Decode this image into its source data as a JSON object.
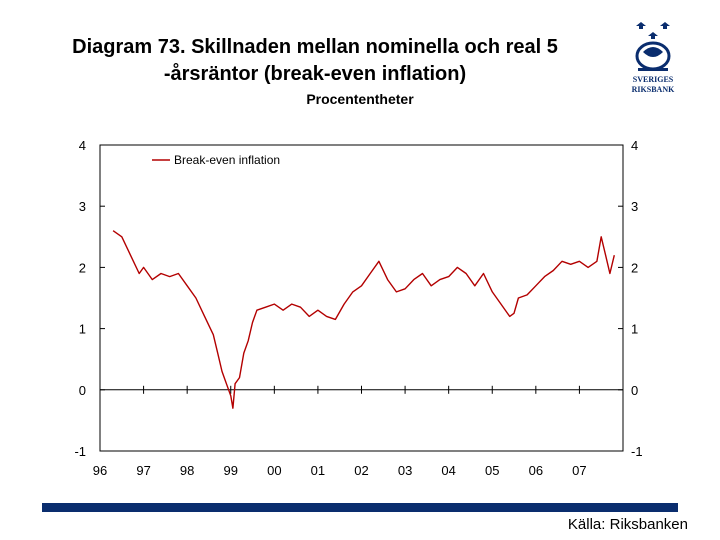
{
  "title_line1": "Diagram 73. Skillnaden mellan nominella och real 5",
  "title_line2": "-årsräntor (break-even inflation)",
  "subtitle": "Procententheter",
  "source": "Källa: Riksbanken",
  "logo": {
    "icon": "sveriges-riksbank-logo",
    "line1": "SVERIGES",
    "line2": "RIKSBANK"
  },
  "colors": {
    "series": "#b30000",
    "footer_bar": "#0a2d6e",
    "logo": "#0a2d6e"
  },
  "chart_data": {
    "type": "line",
    "title": "Diagram 73. Skillnaden mellan nominella och real 5-årsräntor (break-even inflation)",
    "ylabel": "Procententheter",
    "xlabel": "",
    "xlim": [
      1996,
      2008
    ],
    "ylim": [
      -1,
      4
    ],
    "x_ticks": [
      "96",
      "97",
      "98",
      "99",
      "00",
      "01",
      "02",
      "03",
      "04",
      "05",
      "06",
      "07"
    ],
    "y_ticks": [
      "4",
      "3",
      "2",
      "1",
      "0",
      "-1"
    ],
    "legend_position": "top-left",
    "series": [
      {
        "name": "Break-even inflation",
        "x": [
          1996.3,
          1996.5,
          1996.7,
          1996.9,
          1997.0,
          1997.2,
          1997.4,
          1997.6,
          1997.8,
          1998.0,
          1998.2,
          1998.4,
          1998.6,
          1998.7,
          1998.8,
          1998.9,
          1999.0,
          1999.05,
          1999.1,
          1999.2,
          1999.3,
          1999.4,
          1999.5,
          1999.6,
          1999.8,
          2000.0,
          2000.2,
          2000.4,
          2000.6,
          2000.8,
          2001.0,
          2001.2,
          2001.4,
          2001.6,
          2001.8,
          2002.0,
          2002.2,
          2002.4,
          2002.6,
          2002.8,
          2003.0,
          2003.2,
          2003.4,
          2003.6,
          2003.8,
          2004.0,
          2004.2,
          2004.4,
          2004.6,
          2004.8,
          2005.0,
          2005.2,
          2005.4,
          2005.5,
          2005.6,
          2005.8,
          2006.0,
          2006.2,
          2006.4,
          2006.6,
          2006.8,
          2007.0,
          2007.2,
          2007.4,
          2007.5,
          2007.6,
          2007.7,
          2007.8
        ],
        "values": [
          2.6,
          2.5,
          2.2,
          1.9,
          2.0,
          1.8,
          1.9,
          1.85,
          1.9,
          1.7,
          1.5,
          1.2,
          0.9,
          0.6,
          0.3,
          0.1,
          -0.1,
          -0.3,
          0.1,
          0.2,
          0.6,
          0.8,
          1.1,
          1.3,
          1.35,
          1.4,
          1.3,
          1.4,
          1.35,
          1.2,
          1.3,
          1.2,
          1.15,
          1.4,
          1.6,
          1.7,
          1.9,
          2.1,
          1.8,
          1.6,
          1.65,
          1.8,
          1.9,
          1.7,
          1.8,
          1.85,
          2.0,
          1.9,
          1.7,
          1.9,
          1.6,
          1.4,
          1.2,
          1.25,
          1.5,
          1.55,
          1.7,
          1.85,
          1.95,
          2.1,
          2.05,
          2.1,
          2.0,
          2.1,
          2.5,
          2.2,
          1.9,
          2.2
        ]
      }
    ]
  }
}
